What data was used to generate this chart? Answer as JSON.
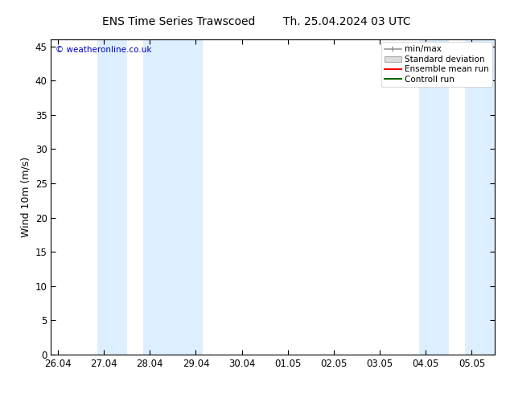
{
  "title_left": "ENS Time Series Trawscoed",
  "title_right": "Th. 25.04.2024 03 UTC",
  "ylabel": "Wind 10m (m/s)",
  "watermark": "© weatheronline.co.uk",
  "ylim": [
    0,
    46
  ],
  "yticks": [
    0,
    5,
    10,
    15,
    20,
    25,
    30,
    35,
    40,
    45
  ],
  "xtick_labels": [
    "26.04",
    "27.04",
    "28.04",
    "29.04",
    "30.04",
    "01.05",
    "02.05",
    "03.05",
    "04.05",
    "05.05"
  ],
  "xtick_positions": [
    0,
    1,
    2,
    3,
    4,
    5,
    6,
    7,
    8,
    9
  ],
  "shaded_bands": [
    [
      0.85,
      1.5
    ],
    [
      1.85,
      3.15
    ],
    [
      7.85,
      8.5
    ],
    [
      8.85,
      9.5
    ]
  ],
  "shade_color": "#ddeeff",
  "bg_color": "#ffffff",
  "legend_entries": [
    "min/max",
    "Standard deviation",
    "Ensemble mean run",
    "Controll run"
  ],
  "legend_line_colors": [
    "#999999",
    "#cccccc",
    "#ff0000",
    "#006600"
  ],
  "title_fontsize": 10,
  "tick_fontsize": 8.5,
  "ylabel_fontsize": 9,
  "watermark_color": "#0000cc",
  "watermark_fontsize": 7.5,
  "legend_fontsize": 7.5
}
